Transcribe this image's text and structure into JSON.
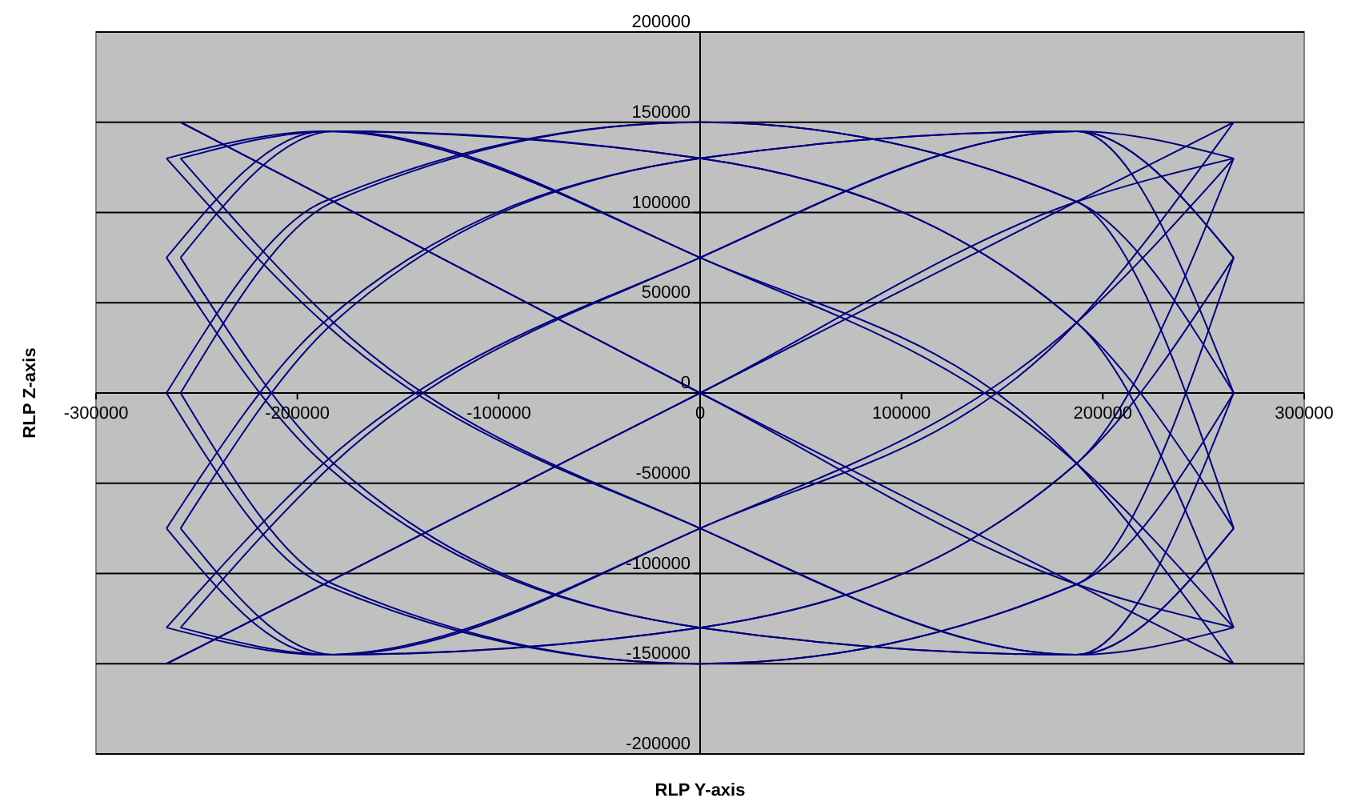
{
  "chart_data": {
    "type": "line",
    "xlabel": "RLP Y-axis",
    "ylabel": "RLP Z-axis",
    "xlim": [
      -300000,
      300000
    ],
    "ylim": [
      -200000,
      200000
    ],
    "xticks": [
      -300000,
      -200000,
      -100000,
      0,
      100000,
      200000,
      300000
    ],
    "yticks": [
      -200000,
      -150000,
      -100000,
      -50000,
      0,
      50000,
      100000,
      150000,
      200000
    ],
    "grid": "y",
    "marker": "none",
    "line_style": "solid",
    "x": [
      -265000,
      -187000,
      0,
      187000,
      265000
    ],
    "series": [
      {
        "color": "#000080",
        "values": [
          -150000,
          -106000,
          0,
          106000,
          150000
        ]
      },
      {
        "color": "#000080",
        "values": [
          -150000,
          -106000,
          0,
          106000,
          130000
        ]
      },
      {
        "color": "#000080",
        "values": [
          -130000,
          -145000,
          -75000,
          39000,
          130000
        ]
      },
      {
        "color": "#000080",
        "values": [
          -130000,
          -39000,
          75000,
          145000,
          75000
        ]
      },
      {
        "color": "#000080",
        "values": [
          -75000,
          -145000,
          -130000,
          -39000,
          75000
        ]
      },
      {
        "color": "#000080",
        "values": [
          -75000,
          39000,
          130000,
          145000,
          0
        ]
      },
      {
        "color": "#000080",
        "values": [
          0,
          -106000,
          -150000,
          -106000,
          0
        ]
      },
      {
        "color": "#000080",
        "values": [
          0,
          106000,
          150000,
          106000,
          -75000
        ]
      },
      {
        "color": "#000080",
        "values": [
          75000,
          -39000,
          -130000,
          -145000,
          -75000
        ]
      },
      {
        "color": "#000080",
        "values": [
          75000,
          145000,
          130000,
          39000,
          -130000
        ]
      },
      {
        "color": "#000080",
        "values": [
          130000,
          39000,
          -75000,
          -145000,
          -130000
        ]
      },
      {
        "color": "#000080",
        "values": [
          130000,
          145000,
          75000,
          -39000,
          -150000
        ]
      },
      {
        "color": "#000080",
        "x": [
          -258000,
          -182000,
          0,
          187000,
          265000
        ],
        "values": [
          150000,
          106000,
          0,
          -106000,
          -150000
        ]
      },
      {
        "color": "#000080",
        "x": [
          -258000,
          -182000,
          0,
          187000,
          265000
        ],
        "values": [
          150000,
          106000,
          0,
          -106000,
          -130000
        ]
      },
      {
        "color": "#000080",
        "x": [
          -258000,
          -182000,
          0,
          187000,
          265000
        ],
        "values": [
          130000,
          145000,
          75000,
          -39000,
          -130000
        ]
      },
      {
        "color": "#000080",
        "x": [
          -258000,
          -182000,
          0,
          187000,
          265000
        ],
        "values": [
          130000,
          39000,
          -75000,
          -145000,
          -75000
        ]
      },
      {
        "color": "#000080",
        "x": [
          -258000,
          -182000,
          0,
          187000,
          265000
        ],
        "values": [
          75000,
          145000,
          130000,
          39000,
          -75000
        ]
      },
      {
        "color": "#000080",
        "x": [
          -258000,
          -182000,
          0,
          187000,
          265000
        ],
        "values": [
          75000,
          -39000,
          -130000,
          -145000,
          0
        ]
      },
      {
        "color": "#000080",
        "x": [
          -258000,
          -182000,
          0,
          187000,
          265000
        ],
        "values": [
          0,
          106000,
          150000,
          106000,
          0
        ]
      },
      {
        "color": "#000080",
        "x": [
          -258000,
          -182000,
          0,
          187000,
          265000
        ],
        "values": [
          0,
          -106000,
          -150000,
          -106000,
          75000
        ]
      },
      {
        "color": "#000080",
        "x": [
          -258000,
          -182000,
          0,
          187000,
          265000
        ],
        "values": [
          -75000,
          39000,
          130000,
          145000,
          75000
        ]
      },
      {
        "color": "#000080",
        "x": [
          -258000,
          -182000,
          0,
          187000,
          265000
        ],
        "values": [
          -75000,
          -145000,
          -130000,
          -39000,
          130000
        ]
      },
      {
        "color": "#000080",
        "x": [
          -258000,
          -182000,
          0,
          187000,
          265000
        ],
        "values": [
          -130000,
          -39000,
          75000,
          145000,
          130000
        ]
      },
      {
        "color": "#000080",
        "x": [
          -258000,
          -182000,
          0,
          187000,
          265000
        ],
        "values": [
          -130000,
          -145000,
          -75000,
          39000,
          150000
        ]
      }
    ]
  }
}
